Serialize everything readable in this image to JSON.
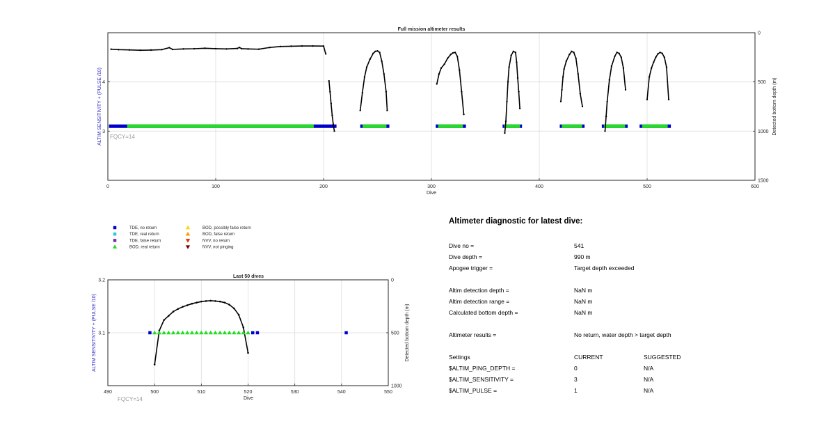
{
  "colors": {
    "tde_no_return": "#0000cc",
    "tde_real_return": "#33cccc",
    "tde_false_return": "#7030a0",
    "bod_real_return": "#22dd22",
    "bod_possibly_false": "#ffd700",
    "bod_false_return": "#ff9900",
    "nvv_no_return": "#dd3300",
    "nvv_not_pinging": "#7a0000",
    "depth_line": "#000000",
    "left_ylabel": "#2b2bbf",
    "fqcy": "#999999"
  },
  "legend": {
    "items": [
      {
        "label": "TDE, no return",
        "marker": "square",
        "color": "#0000cc"
      },
      {
        "label": "TDE, real return",
        "marker": "square",
        "color": "#33cccc"
      },
      {
        "label": "TDE, false return",
        "marker": "square",
        "color": "#7030a0"
      },
      {
        "label": "BOD, real return",
        "marker": "triangle-up",
        "color": "#22dd22"
      },
      {
        "label": "BOD, possibly false return",
        "marker": "triangle-up",
        "color": "#ffd700"
      },
      {
        "label": "BOD, false return",
        "marker": "triangle-up",
        "color": "#ff9900"
      },
      {
        "label": "NVV, no return",
        "marker": "triangle-down",
        "color": "#dd3300"
      },
      {
        "label": "NVV, not pinging",
        "marker": "triangle-down",
        "color": "#7a0000"
      }
    ]
  },
  "chart_data": [
    {
      "type": "scatter",
      "title": "Full mission altimeter results",
      "xlabel": "Dive",
      "ylabel": "ALTIM SENSITIVITY + (PULSE /10)",
      "y2label": "Detected bottom depth (m)",
      "annotation": "FQCY=14",
      "xlim": [
        0,
        600
      ],
      "ylim": [
        2,
        5
      ],
      "y2lim": [
        0,
        1500
      ],
      "y2_reversed": true,
      "xticks": [
        "0",
        "100",
        "200",
        "300",
        "400",
        "500",
        "600"
      ],
      "yticks": [
        "3",
        "4"
      ],
      "y2ticks": [
        "0",
        "500",
        "1000",
        "1500"
      ],
      "grid": true,
      "setting_bands": [
        {
          "x0": 1,
          "x1": 212,
          "y": 3.1
        },
        {
          "x0": 234,
          "x1": 261,
          "y": 3.1
        },
        {
          "x0": 304,
          "x1": 332,
          "y": 3.1
        },
        {
          "x0": 366,
          "x1": 384,
          "y": 3.1
        },
        {
          "x0": 419,
          "x1": 442,
          "y": 3.1
        },
        {
          "x0": 458,
          "x1": 482,
          "y": 3.1
        },
        {
          "x0": 493,
          "x1": 522,
          "y": 3.1
        }
      ],
      "depth_segments": [
        {
          "x": [
            3,
            10,
            20,
            30,
            40,
            50,
            57,
            60,
            70,
            80,
            90,
            100,
            110,
            120,
            122,
            124,
            130,
            140,
            150,
            160,
            170,
            180,
            190,
            200,
            202
          ],
          "y": [
            168,
            172,
            175,
            178,
            176,
            172,
            152,
            170,
            165,
            163,
            158,
            162,
            165,
            160,
            150,
            162,
            165,
            168,
            150,
            140,
            137,
            135,
            135,
            136,
            215
          ]
        },
        {
          "x": [
            205,
            206,
            207,
            208,
            209,
            210
          ],
          "y": [
            490,
            600,
            720,
            840,
            930,
            1000
          ]
        },
        {
          "x": [
            234,
            236,
            238,
            240,
            243,
            246,
            248,
            250,
            252,
            254,
            256,
            258,
            259
          ],
          "y": [
            790,
            610,
            450,
            350,
            270,
            210,
            190,
            185,
            200,
            290,
            420,
            600,
            790
          ]
        },
        {
          "x": [
            305,
            307,
            309,
            312,
            315,
            318,
            320,
            322,
            324,
            326,
            328,
            330
          ],
          "y": [
            520,
            420,
            360,
            320,
            260,
            220,
            205,
            200,
            240,
            380,
            600,
            830
          ]
        },
        {
          "x": [
            368,
            369,
            370,
            371,
            372,
            374,
            376,
            378,
            379,
            380,
            381,
            382
          ],
          "y": [
            1020,
            900,
            700,
            500,
            350,
            230,
            190,
            200,
            300,
            460,
            600,
            770
          ]
        },
        {
          "x": [
            420,
            421,
            422,
            423,
            425,
            428,
            430,
            432,
            434,
            436,
            438,
            440
          ],
          "y": [
            700,
            580,
            450,
            370,
            290,
            220,
            190,
            200,
            260,
            420,
            620,
            750
          ]
        },
        {
          "x": [
            461,
            462,
            463,
            465,
            467,
            470,
            472,
            474,
            476,
            478,
            480
          ],
          "y": [
            1000,
            850,
            700,
            480,
            340,
            240,
            200,
            210,
            250,
            360,
            580
          ]
        },
        {
          "x": [
            500,
            502,
            504,
            506,
            508,
            510,
            512,
            514,
            516,
            518,
            520
          ],
          "y": [
            680,
            450,
            360,
            300,
            250,
            215,
            200,
            210,
            250,
            350,
            680
          ]
        }
      ]
    },
    {
      "type": "scatter",
      "title": "Last 50 dives",
      "xlabel": "Dive",
      "ylabel": "ALTIM SENSITIVITY + (PULSE /10)",
      "y2label": "Detected bottom depth (m)",
      "annotation": "FQCY=14",
      "xlim": [
        490,
        550
      ],
      "ylim": [
        3,
        3.2
      ],
      "y2lim": [
        0,
        1000
      ],
      "y2_reversed": true,
      "xticks": [
        "490",
        "500",
        "510",
        "520",
        "530",
        "540",
        "550"
      ],
      "yticks": [
        "3.1",
        "3.2"
      ],
      "y2ticks": [
        "0",
        "500",
        "1000"
      ],
      "grid": true,
      "tde_no_return": [
        {
          "x": 499,
          "y": 3.1
        },
        {
          "x": 521,
          "y": 3.1
        },
        {
          "x": 522,
          "y": 3.1
        },
        {
          "x": 541,
          "y": 3.1
        }
      ],
      "bod_real_return": [
        {
          "x": 500,
          "y": 3.1
        },
        {
          "x": 501,
          "y": 3.1
        },
        {
          "x": 502,
          "y": 3.1
        },
        {
          "x": 503,
          "y": 3.1
        },
        {
          "x": 504,
          "y": 3.1
        },
        {
          "x": 505,
          "y": 3.1
        },
        {
          "x": 506,
          "y": 3.1
        },
        {
          "x": 507,
          "y": 3.1
        },
        {
          "x": 508,
          "y": 3.1
        },
        {
          "x": 509,
          "y": 3.1
        },
        {
          "x": 510,
          "y": 3.1
        },
        {
          "x": 511,
          "y": 3.1
        },
        {
          "x": 512,
          "y": 3.1
        },
        {
          "x": 513,
          "y": 3.1
        },
        {
          "x": 514,
          "y": 3.1
        },
        {
          "x": 515,
          "y": 3.1
        },
        {
          "x": 516,
          "y": 3.1
        },
        {
          "x": 517,
          "y": 3.1
        },
        {
          "x": 518,
          "y": 3.1
        },
        {
          "x": 519,
          "y": 3.1
        },
        {
          "x": 520,
          "y": 3.1
        }
      ],
      "depth_line": {
        "x": [
          500,
          501,
          502,
          503,
          504,
          505,
          506,
          507,
          508,
          509,
          510,
          511,
          512,
          513,
          514,
          515,
          516,
          517,
          518,
          519,
          520
        ],
        "y": [
          800,
          480,
          380,
          340,
          300,
          275,
          255,
          240,
          225,
          215,
          205,
          200,
          197,
          200,
          205,
          215,
          235,
          270,
          330,
          450,
          690
        ]
      }
    }
  ],
  "diagnostic": {
    "title": "Altimeter diagnostic for latest dive:",
    "dive_no_label": "Dive no =",
    "dive_no_value": "541",
    "dive_depth_label": "Dive depth =",
    "dive_depth_value": "990 m",
    "apogee_label": "Apogee trigger =",
    "apogee_value": "Target depth exceeded",
    "detect_depth_label": "Altim detection depth =",
    "detect_depth_value": "NaN m",
    "detect_range_label": "Altim detection range =",
    "detect_range_value": "NaN m",
    "bottom_depth_label": "Calculated bottom depth =",
    "bottom_depth_value": "NaN m",
    "results_label": "Altimeter results =",
    "results_value": "No return, water depth > target depth",
    "settings_label": "Settings",
    "current_header": "CURRENT",
    "suggested_header": "SUGGESTED",
    "settings": [
      {
        "name": "$ALTIM_PING_DEPTH =",
        "current": "0",
        "suggested": "N/A"
      },
      {
        "name": "$ALTIM_SENSITIVITY =",
        "current": "3",
        "suggested": "N/A"
      },
      {
        "name": "$ALTIM_PULSE =",
        "current": "1",
        "suggested": "N/A"
      }
    ]
  }
}
